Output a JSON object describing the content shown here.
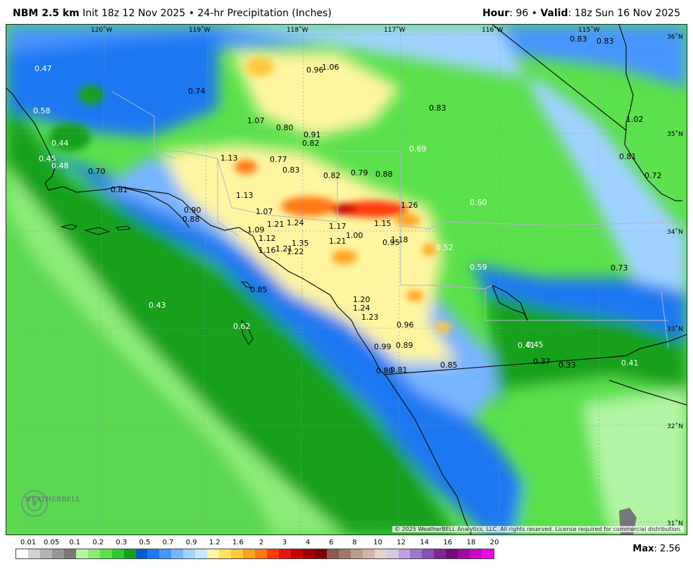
{
  "header": {
    "model": "NBM 2.5 km",
    "init_text": " Init 18z 12 Nov 2025 • 24-hr Precipitation (Inches)",
    "hour_label": "Hour",
    "hour_value": ": 96 • ",
    "valid_label": "Valid",
    "valid_value": ": 18z Sun 16 Nov 2025"
  },
  "map": {
    "longitude_labels": [
      "120˚W",
      "119˚W",
      "118˚W",
      "117˚W",
      "116˚W",
      "115˚W"
    ],
    "latitude_labels": [
      "36˚N",
      "35˚N",
      "34˚N",
      "33˚N",
      "32˚N",
      "31˚N"
    ],
    "copyright": "© 2025 WeatherBELL Analytics, LLC. All rights reserved. License required for commercial distribution.",
    "logo_text": "WEATHERBELL",
    "points": [
      {
        "v": "0.47",
        "c": "#fff"
      },
      {
        "v": "0.58",
        "c": "#fff"
      },
      {
        "v": "0.44",
        "c": "#fff"
      },
      {
        "v": "0.45",
        "c": "#fff"
      },
      {
        "v": "0.48",
        "c": "#fff"
      },
      {
        "v": "0.70",
        "c": "#000"
      },
      {
        "v": "0.81",
        "c": "#000"
      },
      {
        "v": "0.74",
        "c": "#000"
      },
      {
        "v": "0.96",
        "c": "#000"
      },
      {
        "v": "1.06",
        "c": "#000"
      },
      {
        "v": "0.83",
        "c": "#000"
      },
      {
        "v": "0.83",
        "c": "#000"
      },
      {
        "v": "0.83",
        "c": "#000"
      },
      {
        "v": "1.07",
        "c": "#000"
      },
      {
        "v": "0.80",
        "c": "#000"
      },
      {
        "v": "0.91",
        "c": "#000"
      },
      {
        "v": "0.82",
        "c": "#000"
      },
      {
        "v": "1.02",
        "c": "#000"
      },
      {
        "v": "0.69",
        "c": "#fff"
      },
      {
        "v": "1.13",
        "c": "#000"
      },
      {
        "v": "0.77",
        "c": "#000"
      },
      {
        "v": "0.83",
        "c": "#000"
      },
      {
        "v": "0.82",
        "c": "#000"
      },
      {
        "v": "0.79",
        "c": "#000"
      },
      {
        "v": "0.88",
        "c": "#000"
      },
      {
        "v": "0.81",
        "c": "#000"
      },
      {
        "v": "0.72",
        "c": "#000"
      },
      {
        "v": "1.13",
        "c": "#000"
      },
      {
        "v": "0.60",
        "c": "#fff"
      },
      {
        "v": "1.26",
        "c": "#000"
      },
      {
        "v": "0.90",
        "c": "#000"
      },
      {
        "v": "0.88",
        "c": "#000"
      },
      {
        "v": "1.07",
        "c": "#000"
      },
      {
        "v": "1.21",
        "c": "#000"
      },
      {
        "v": "1.24",
        "c": "#000"
      },
      {
        "v": "1.17",
        "c": "#000"
      },
      {
        "v": "1.15",
        "c": "#000"
      },
      {
        "v": "1.09",
        "c": "#000"
      },
      {
        "v": "1.00",
        "c": "#000"
      },
      {
        "v": "1.18",
        "c": "#000"
      },
      {
        "v": "1.12",
        "c": "#000"
      },
      {
        "v": "1.35",
        "c": "#000"
      },
      {
        "v": "1.21",
        "c": "#000"
      },
      {
        "v": "0.95",
        "c": "#000"
      },
      {
        "v": "0.52",
        "c": "#fff"
      },
      {
        "v": "1.16",
        "c": "#000"
      },
      {
        "v": "1.21",
        "c": "#000"
      },
      {
        "v": "1.22",
        "c": "#000"
      },
      {
        "v": "0.59",
        "c": "#fff"
      },
      {
        "v": "0.73",
        "c": "#000"
      },
      {
        "v": "0.85",
        "c": "#000"
      },
      {
        "v": "0.43",
        "c": "#fff"
      },
      {
        "v": "1.20",
        "c": "#000"
      },
      {
        "v": "1.24",
        "c": "#000"
      },
      {
        "v": "1.23",
        "c": "#000"
      },
      {
        "v": "0.62",
        "c": "#fff"
      },
      {
        "v": "0.96",
        "c": "#000"
      },
      {
        "v": "0.99",
        "c": "#000"
      },
      {
        "v": "0.89",
        "c": "#000"
      },
      {
        "v": "0.41",
        "c": "#fff"
      },
      {
        "v": "0.45",
        "c": "#fff"
      },
      {
        "v": "0.37",
        "c": "#000"
      },
      {
        "v": "0.33",
        "c": "#000"
      },
      {
        "v": "0.41",
        "c": "#fff"
      },
      {
        "v": "0.80",
        "c": "#000"
      },
      {
        "v": "0.81",
        "c": "#000"
      },
      {
        "v": "0.85",
        "c": "#000"
      }
    ]
  },
  "legend": {
    "labels": [
      "0.01",
      "0.05",
      "0.1",
      "0.2",
      "0.3",
      "0.5",
      "0.7",
      "0.9",
      "1.2",
      "1.6",
      "2",
      "3",
      "4",
      "6",
      "8",
      "10",
      "12",
      "14",
      "16",
      "18",
      "20"
    ],
    "colors": [
      "#ffffff",
      "#d2d2d2",
      "#b4b4b4",
      "#969696",
      "#787878",
      "#b4f5a5",
      "#8ceb78",
      "#5ae14b",
      "#32c832",
      "#14a01e",
      "#0a5ad2",
      "#1e78f0",
      "#4696ff",
      "#78b4ff",
      "#a0d2ff",
      "#c8e6ff",
      "#fff5a0",
      "#ffe164",
      "#ffc83c",
      "#ffa01e",
      "#ff7814",
      "#ff3c0a",
      "#e6140a",
      "#c80000",
      "#a00000",
      "#7d0000",
      "#8c5a50",
      "#a07868",
      "#be9a8c",
      "#d2b4aa",
      "#e6d2cd",
      "#d7c8e6",
      "#bea0dc",
      "#a078c8",
      "#8c50b4",
      "#7d2896",
      "#780a78",
      "#a00aa0",
      "#c80ac8",
      "#e60ae6"
    ]
  },
  "footer": {
    "max_label": "Max",
    "max_value": ": 2.56"
  }
}
